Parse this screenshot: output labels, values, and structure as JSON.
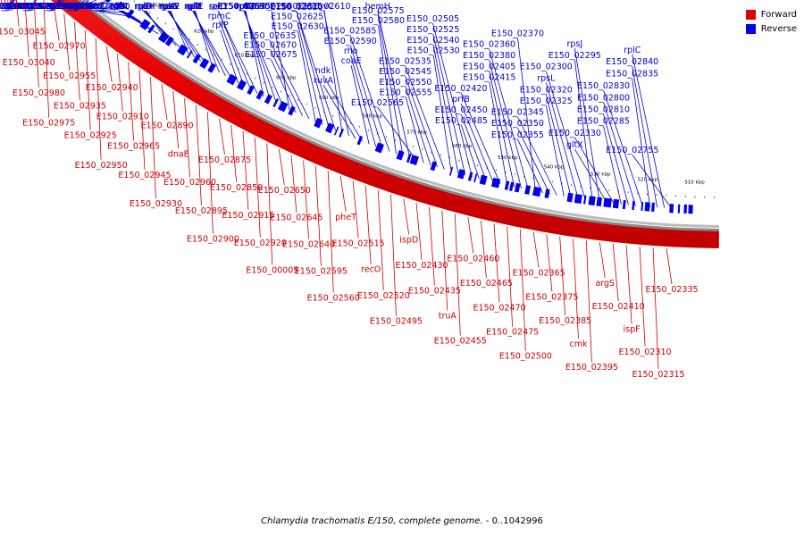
{
  "title": "Chlamydia trachomatis E/150, complete genome.",
  "range": "- 0..1042996",
  "legend": {
    "forward": "Forward",
    "reverse": "Reverse"
  },
  "colors": {
    "forward": "#e00000",
    "reverse": "#0000ee",
    "forward_label": "#cc0000",
    "reverse_label": "#0000cc"
  },
  "ticks": [
    "660 kbp",
    "650 kbp",
    "640 kbp",
    "630 kbp",
    "620 kbp",
    "610 kbp",
    "600 kbp",
    "590 kbp",
    "580 kbp",
    "570 kbp",
    "560 kbp",
    "550 kbp",
    "540 kbp",
    "530 kbp",
    "520 kbp",
    "510 kbp"
  ],
  "reverse_labels": [
    "mutL",
    "E150_03010",
    "E150_03005",
    "E150_03030",
    "E150_03000",
    "E150_02995",
    "E150_03025",
    "E150_03020",
    "E150_03015",
    "E150_02990",
    "E150_02985",
    "E150_02905",
    "E150_02885",
    "hisS",
    "aspS",
    "E150_02860",
    "E150_02855",
    "E150_02845",
    "lpxC",
    "fabZ",
    "lnt",
    "fmt",
    "rpsQ",
    "rplN",
    "rplX",
    "rpsH",
    "rplR",
    "rplD",
    "rpsE",
    "rplW",
    "rpsS",
    "rpsC",
    "rplE",
    "rplF",
    "rplB",
    "rplV",
    "rplP",
    "rpmC",
    "secY",
    "rplO",
    "rpsM",
    "rplQ",
    "E150_02695",
    "E150_02690",
    "E150_02680",
    "E150_02675",
    "E150_02670",
    "E150_02635",
    "E150_02630",
    "E150_02625",
    "E150_02620",
    "E150_02615",
    "E150_02610",
    "ruvC",
    "ruvA",
    "ndk",
    "coaE",
    "rho",
    "E150_02590",
    "E150_02585",
    "E150_02580",
    "E150_02575",
    "hemH",
    "E150_02565",
    "E150_02555",
    "E150_02550",
    "E150_02545",
    "E150_02535",
    "E150_02530",
    "E150_02540",
    "E150_02525",
    "E150_02505",
    "E150_02485",
    "E150_02450",
    "prfB",
    "E150_02420",
    "E150_02415",
    "E150_02405",
    "E150_02380",
    "E150_02360",
    "E150_02370",
    "E150_02355",
    "E150_02350",
    "E150_02345",
    "E150_02325",
    "E150_02320",
    "rpsL",
    "E150_02300",
    "E150_02295",
    "rpsJ",
    "gltX",
    "E150_02330",
    "E150_02285",
    "E150_02810",
    "E150_02800",
    "E150_02830",
    "E150_02835",
    "E150_02840",
    "rplC",
    "E150_02755"
  ],
  "forward_labels": [
    "thrS",
    "E150_03045",
    "E150_03040",
    "E150_02980",
    "E150_02975",
    "E150_02970",
    "E150_02955",
    "E150_02935",
    "E150_02925",
    "E150_02950",
    "E150_02940",
    "E150_02910",
    "E150_02965",
    "E150_02945",
    "E150_02930",
    "E150_02890",
    "dnaE",
    "E150_02960",
    "E150_02895",
    "E150_02900",
    "E150_02875",
    "E150_02850",
    "E150_02915",
    "E150_02920",
    "E150_00005",
    "E150_02650",
    "E150_02645",
    "E150_02640",
    "E150_02595",
    "E150_02560",
    "pheT",
    "E150_02515",
    "recO",
    "E150_02520",
    "E150_02495",
    "ispD",
    "E150_02430",
    "E150_02435",
    "truA",
    "E150_02455",
    "E150_02460",
    "E150_02465",
    "E150_02470",
    "E150_02475",
    "E150_02500",
    "E150_02365",
    "E150_02375",
    "E150_02385",
    "cmk",
    "E150_02395",
    "argS",
    "E150_02410",
    "ispF",
    "E150_02310",
    "E150_02315",
    "E150_02335"
  ]
}
